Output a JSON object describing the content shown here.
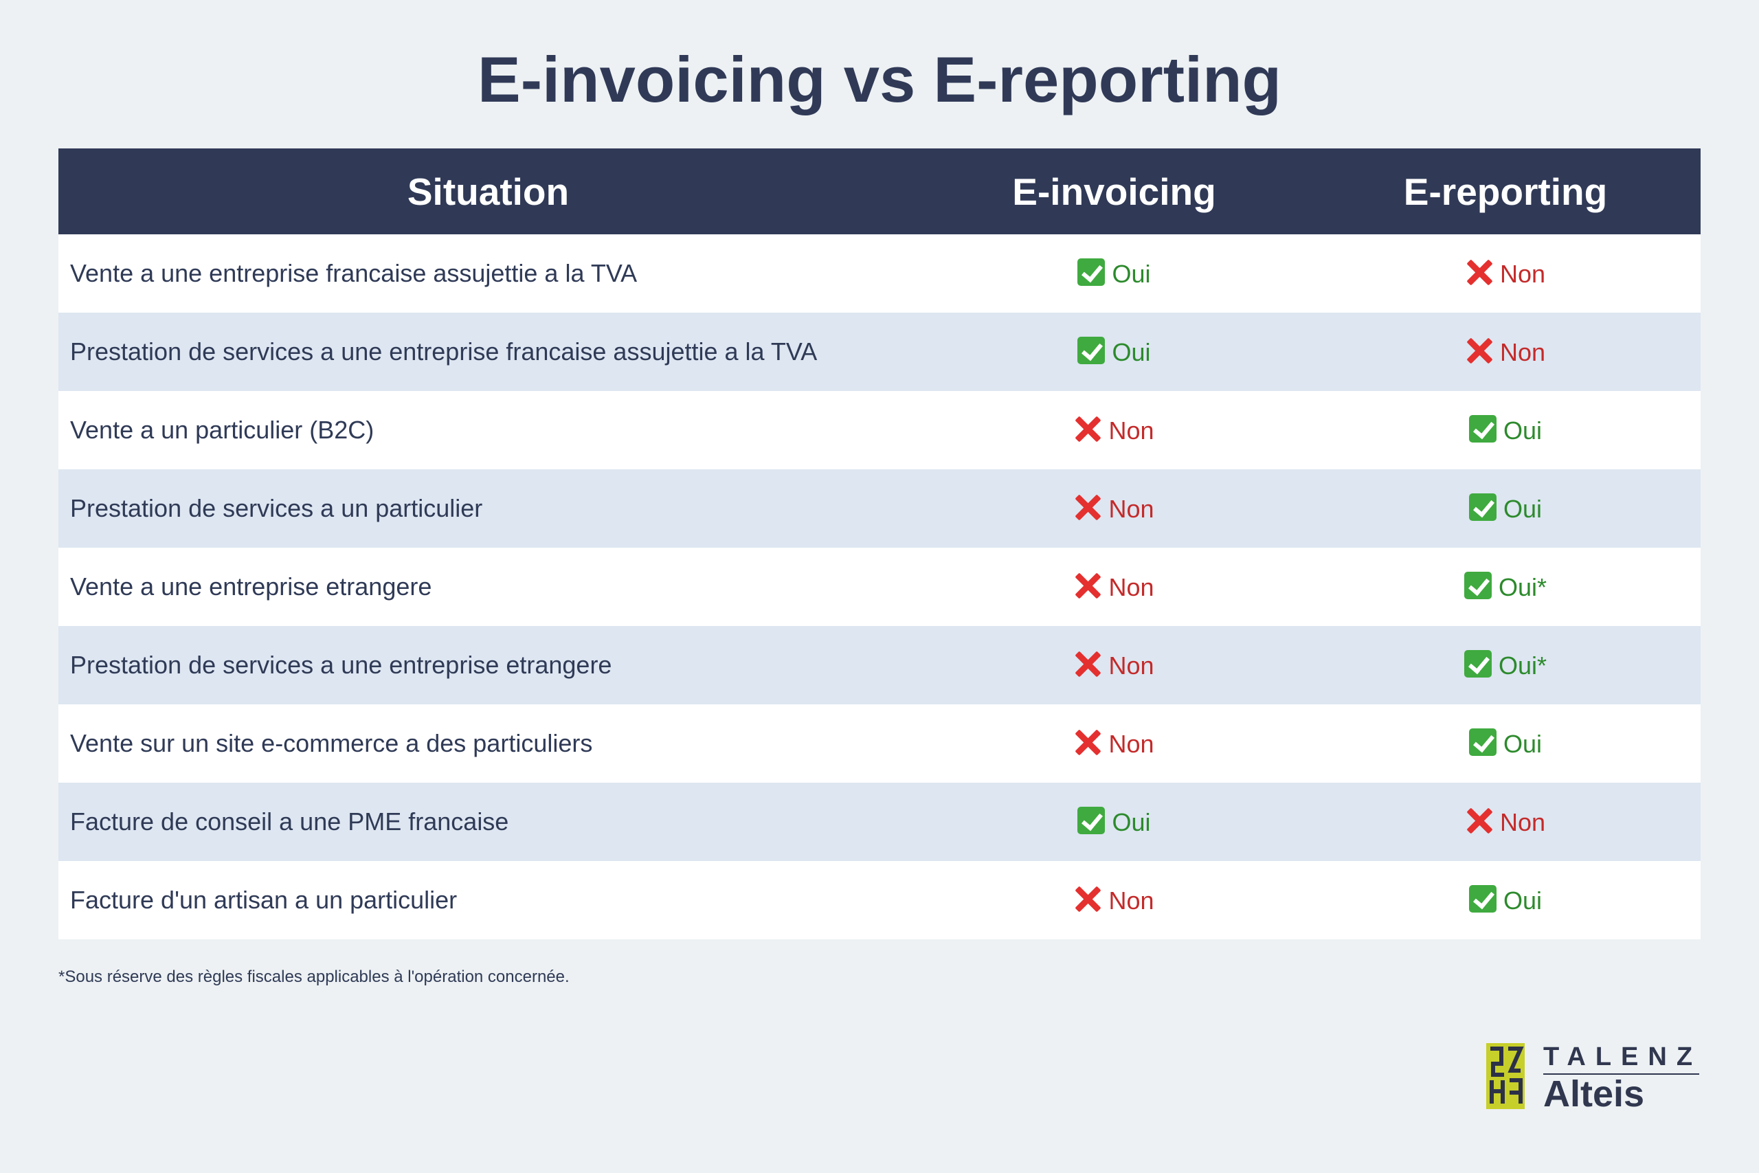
{
  "title": "E-invoicing vs E-reporting",
  "table": {
    "headers": [
      "Situation",
      "E-invoicing",
      "E-reporting"
    ],
    "rows": [
      {
        "situation": "Vente a une entreprise francaise assujettie a la TVA",
        "einvoicing": "Oui",
        "ereporting": "Non"
      },
      {
        "situation": "Prestation de services a une entreprise francaise assujettie a la TVA",
        "einvoicing": "Oui",
        "ereporting": "Non"
      },
      {
        "situation": "Vente a un particulier (B2C)",
        "einvoicing": "Non",
        "ereporting": "Oui"
      },
      {
        "situation": "Prestation de services a un particulier",
        "einvoicing": "Non",
        "ereporting": "Oui"
      },
      {
        "situation": "Vente a une entreprise etrangere",
        "einvoicing": "Non",
        "ereporting": "Oui*"
      },
      {
        "situation": "Prestation de services a une entreprise etrangere",
        "einvoicing": "Non",
        "ereporting": "Oui*"
      },
      {
        "situation": "Vente sur un site e-commerce a des particuliers",
        "einvoicing": "Non",
        "ereporting": "Oui"
      },
      {
        "situation": "Facture de conseil a une PME francaise",
        "einvoicing": "Oui",
        "ereporting": "Non"
      },
      {
        "situation": "Facture d'un artisan a un particulier",
        "einvoicing": "Non",
        "ereporting": "Oui"
      }
    ]
  },
  "footnote": "*Sous réserve des règles fiscales applicables à l'opération concernée.",
  "logo": {
    "line1": "TALENZ",
    "line2": "Alteis"
  },
  "colors": {
    "header_bg": "#303a57",
    "row_alt_bg": "#dde6f1",
    "yes": "#2c8a2c",
    "no": "#c42a2a",
    "check_icon": "#3faa3f",
    "cross_icon": "#e4302f",
    "logo_accent": "#c7cf2a"
  }
}
